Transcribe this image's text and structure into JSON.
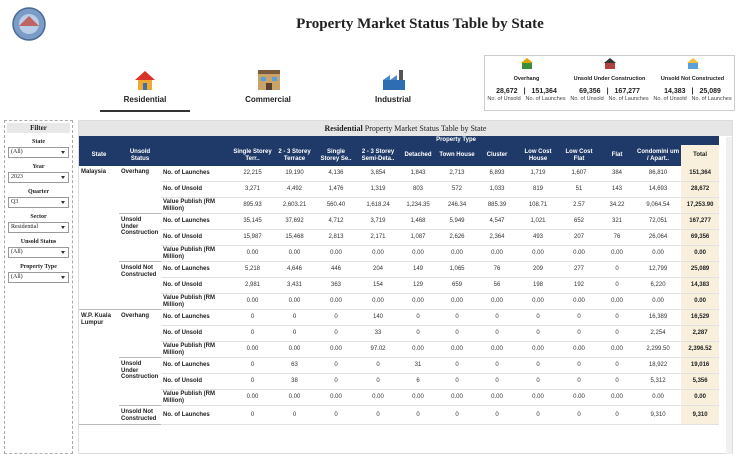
{
  "header": {
    "title": "Property Market Status Table by State"
  },
  "tabs": [
    "Residential",
    "Commercial",
    "Industrial"
  ],
  "summary": {
    "unsold_label": "No. of Unsold",
    "launches_label": "No. of Launches",
    "items": [
      {
        "title": "Overhang",
        "unsold": "28,672",
        "launches": "151,364"
      },
      {
        "title": "Unsold Under Construction",
        "unsold": "69,356",
        "launches": "167,277"
      },
      {
        "title": "Unsold Not Constructed",
        "unsold": "14,383",
        "launches": "25,089"
      }
    ]
  },
  "filters": {
    "title": "Filter",
    "items": [
      {
        "label": "State",
        "value": "(All)"
      },
      {
        "label": "Year",
        "value": "2023"
      },
      {
        "label": "Quarter",
        "value": "Q3"
      },
      {
        "label": "Sector",
        "value": "Residential"
      },
      {
        "label": "Unsold Status",
        "value": "(All)"
      },
      {
        "label": "Property Type",
        "value": "(All)"
      }
    ]
  },
  "table": {
    "title_sector": "Residential",
    "title_rest": "Property Market Status Table by State",
    "state_label": "State",
    "status_label": "Unsold Status",
    "property_type_label": "Property Type",
    "total_label": "Total",
    "property_types": [
      "Single Storey Terr..",
      "2 - 3 Storey Terrace",
      "Single Storey Se..",
      "2 - 3 Storey Semi-Deta..",
      "Detached",
      "Town House",
      "Cluster",
      "Low Cost House",
      "Low Cost Flat",
      "Flat",
      "Condomini um / Apart.."
    ],
    "groups": [
      {
        "state": "Malaysia",
        "statuses": [
          {
            "status": "Overhang",
            "rows": [
              {
                "measure": "No. of Launches",
                "values": [
                  "22,215",
                  "19,190",
                  "4,136",
                  "3,854",
                  "1,843",
                  "2,713",
                  "6,893",
                  "1,719",
                  "1,607",
                  "384",
                  "86,810"
                ],
                "total": "151,364"
              },
              {
                "measure": "No. of Unsold",
                "values": [
                  "3,271",
                  "4,492",
                  "1,476",
                  "1,319",
                  "803",
                  "572",
                  "1,033",
                  "819",
                  "51",
                  "143",
                  "14,693"
                ],
                "total": "28,672"
              },
              {
                "measure": "Value Publish (RM Million)",
                "values": [
                  "895.93",
                  "2,603.21",
                  "560.40",
                  "1,618.24",
                  "1,234.35",
                  "246.34",
                  "885.39",
                  "108.71",
                  "2.57",
                  "34.22",
                  "9,064.54"
                ],
                "total": "17,253.90"
              }
            ]
          },
          {
            "status": "Unsold Under Construction",
            "rows": [
              {
                "measure": "No. of Launches",
                "values": [
                  "35,145",
                  "37,692",
                  "4,712",
                  "3,719",
                  "1,468",
                  "5,949",
                  "4,547",
                  "1,021",
                  "652",
                  "321",
                  "72,051"
                ],
                "total": "167,277"
              },
              {
                "measure": "No. of Unsold",
                "values": [
                  "15,987",
                  "15,468",
                  "2,813",
                  "2,171",
                  "1,087",
                  "2,626",
                  "2,364",
                  "493",
                  "207",
                  "76",
                  "26,064"
                ],
                "total": "69,356"
              },
              {
                "measure": "Value Publish (RM Million)",
                "values": [
                  "0.00",
                  "0.00",
                  "0.00",
                  "0.00",
                  "0.00",
                  "0.00",
                  "0.00",
                  "0.00",
                  "0.00",
                  "0.00",
                  "0.00"
                ],
                "total": "0.00"
              }
            ]
          },
          {
            "status": "Unsold Not Constructed",
            "rows": [
              {
                "measure": "No. of Launches",
                "values": [
                  "5,218",
                  "4,646",
                  "446",
                  "204",
                  "149",
                  "1,065",
                  "76",
                  "209",
                  "277",
                  "0",
                  "12,799"
                ],
                "total": "25,089"
              },
              {
                "measure": "No. of Unsold",
                "values": [
                  "2,981",
                  "3,431",
                  "363",
                  "154",
                  "129",
                  "659",
                  "56",
                  "198",
                  "192",
                  "0",
                  "6,220"
                ],
                "total": "14,383"
              },
              {
                "measure": "Value Publish (RM Million)",
                "values": [
                  "0.00",
                  "0.00",
                  "0.00",
                  "0.00",
                  "0.00",
                  "0.00",
                  "0.00",
                  "0.00",
                  "0.00",
                  "0.00",
                  "0.00"
                ],
                "total": "0.00"
              }
            ]
          }
        ]
      },
      {
        "state": "W.P. Kuala Lumpur",
        "statuses": [
          {
            "status": "Overhang",
            "rows": [
              {
                "measure": "No. of Launches",
                "values": [
                  "0",
                  "0",
                  "0",
                  "140",
                  "0",
                  "0",
                  "0",
                  "0",
                  "0",
                  "0",
                  "16,389"
                ],
                "total": "16,529"
              },
              {
                "measure": "No. of Unsold",
                "values": [
                  "0",
                  "0",
                  "0",
                  "33",
                  "0",
                  "0",
                  "0",
                  "0",
                  "0",
                  "0",
                  "2,254"
                ],
                "total": "2,287"
              },
              {
                "measure": "Value Publish (RM Million)",
                "values": [
                  "0.00",
                  "0.00",
                  "0.00",
                  "97.02",
                  "0.00",
                  "0.00",
                  "0.00",
                  "0.00",
                  "0.00",
                  "0.00",
                  "2,299.50"
                ],
                "total": "2,396.52"
              }
            ]
          },
          {
            "status": "Unsold Under Construction",
            "rows": [
              {
                "measure": "No. of Launches",
                "values": [
                  "0",
                  "63",
                  "0",
                  "0",
                  "31",
                  "0",
                  "0",
                  "0",
                  "0",
                  "0",
                  "18,922"
                ],
                "total": "19,016"
              },
              {
                "measure": "No. of Unsold",
                "values": [
                  "0",
                  "38",
                  "0",
                  "0",
                  "6",
                  "0",
                  "0",
                  "0",
                  "0",
                  "0",
                  "5,312"
                ],
                "total": "5,356"
              },
              {
                "measure": "Value Publish (RM Million)",
                "values": [
                  "0.00",
                  "0.00",
                  "0.00",
                  "0.00",
                  "0.00",
                  "0.00",
                  "0.00",
                  "0.00",
                  "0.00",
                  "0.00",
                  "0.00"
                ],
                "total": "0.00"
              }
            ]
          },
          {
            "status": "Unsold Not Constructed",
            "rows": [
              {
                "measure": "No. of Launches",
                "values": [
                  "0",
                  "0",
                  "0",
                  "0",
                  "0",
                  "0",
                  "0",
                  "0",
                  "0",
                  "0",
                  "9,310"
                ],
                "total": "9,310"
              }
            ]
          }
        ]
      }
    ]
  }
}
